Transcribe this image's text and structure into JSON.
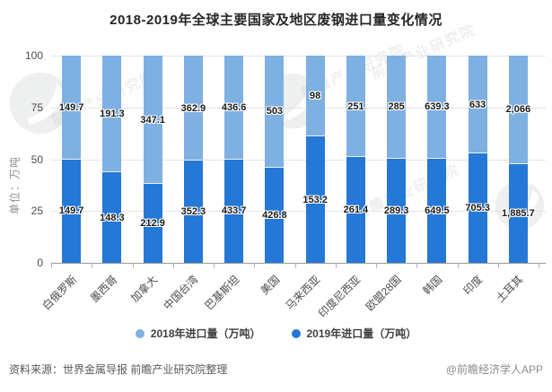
{
  "title": "2018-2019年全球主要国家及地区废钢进口量变化情况",
  "y_axis": {
    "unit_label": "单位：万吨",
    "ticks": [
      "100",
      "75",
      "50",
      "25",
      "0"
    ]
  },
  "chart_data": {
    "type": "bar",
    "subtype": "stacked-100-percent",
    "title": "2018-2019年全球主要国家及地区废钢进口量变化情况",
    "ylabel": "单位：万吨",
    "ylim": [
      0,
      100
    ],
    "grid": true,
    "legend_position": "bottom",
    "categories": [
      "白俄罗斯",
      "墨西哥",
      "加拿大",
      "中国台湾",
      "巴基斯坦",
      "美国",
      "马来西亚",
      "印度尼西亚",
      "欧盟28国",
      "韩国",
      "印度",
      "土耳其"
    ],
    "series": [
      {
        "name": "2018年进口量（万吨）",
        "color": "#7fb0e2",
        "values": [
          149.7,
          191.3,
          347.1,
          362.9,
          436.6,
          503,
          98,
          251,
          285,
          639.3,
          633,
          2066
        ],
        "labels": [
          "149.7",
          "191.3",
          "347.1",
          "362.9",
          "436.6",
          "503",
          "98",
          "251",
          "285",
          "639.3",
          "633",
          "2,066"
        ]
      },
      {
        "name": "2019年进口量（万吨）",
        "color": "#2578d5",
        "values": [
          149.7,
          148.3,
          212.9,
          352.3,
          433.7,
          426.8,
          153.2,
          261.4,
          289.3,
          649.5,
          705.3,
          1885.7
        ],
        "labels": [
          "149.7",
          "148.3",
          "212.9",
          "352.3",
          "433.7",
          "426.8",
          "153.2",
          "261.4",
          "289.3",
          "649.5",
          "705.3",
          "1,885.7"
        ]
      }
    ]
  },
  "footer": {
    "source": "资料来源：世界金属导报 前瞻产业研究院整理",
    "credit": "@前瞻经济学人APP"
  },
  "watermark": {
    "text": "前瞻产业研究院"
  }
}
